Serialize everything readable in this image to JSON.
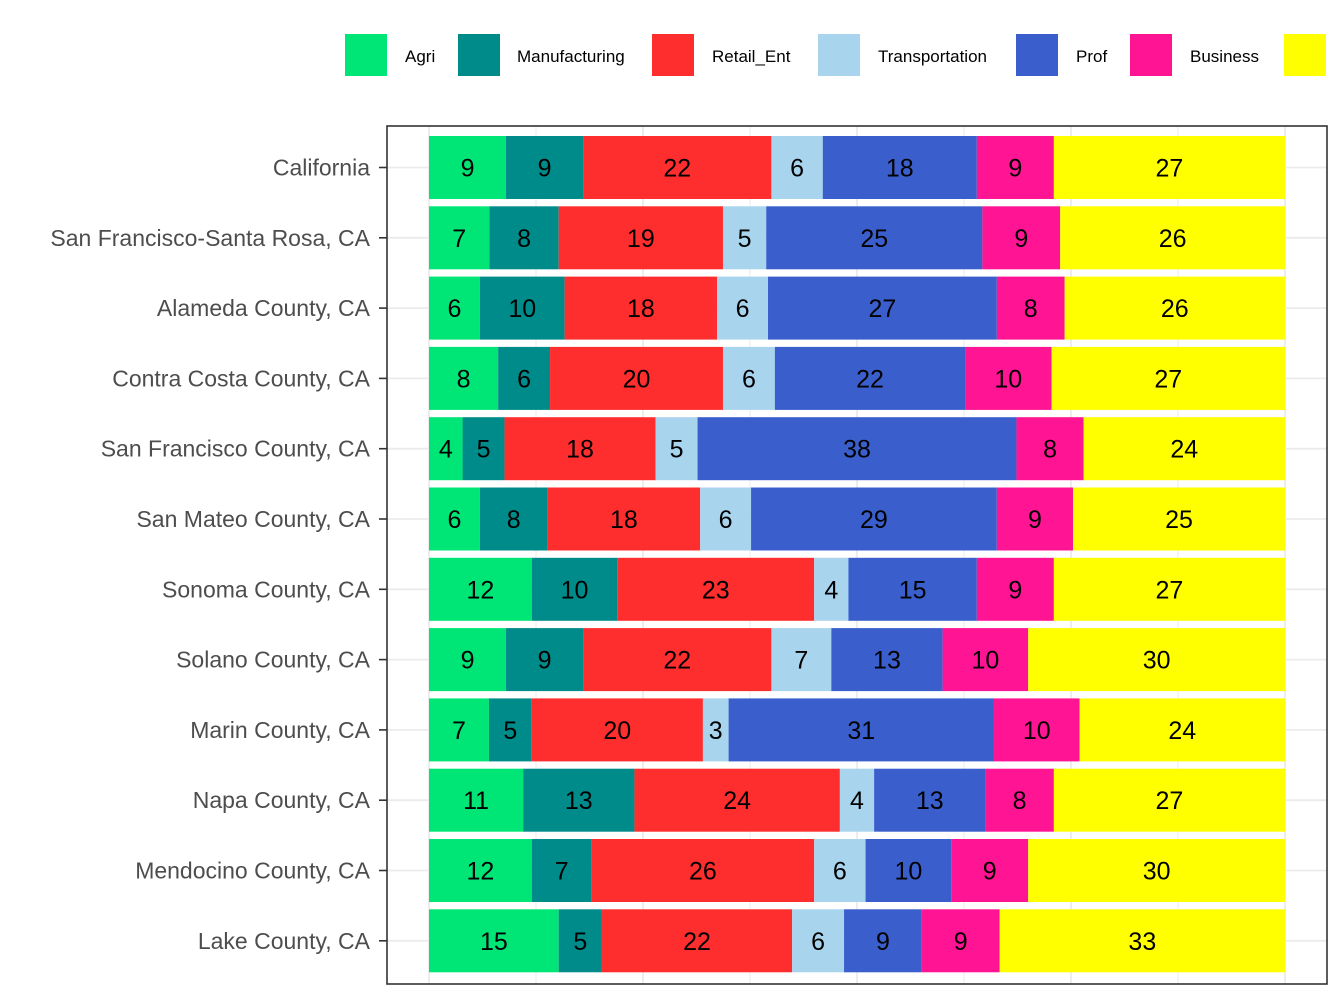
{
  "chart_data": {
    "type": "bar",
    "orientation": "horizontal",
    "stacked": true,
    "title": "",
    "xlabel": "",
    "ylabel": "",
    "grid": true,
    "legend_position": "top",
    "categories": [
      "California",
      "San Francisco-Santa Rosa, CA",
      "Alameda County, CA",
      "Contra Costa County, CA",
      "San Francisco County, CA",
      "San Mateo County, CA",
      "Sonoma County, CA",
      "Solano County, CA",
      "Marin County, CA",
      "Napa County, CA",
      "Mendocino County, CA",
      "Lake County, CA"
    ],
    "series": [
      {
        "name": "Agri",
        "color": "#00e676",
        "values": [
          9,
          7,
          6,
          8,
          4,
          6,
          12,
          9,
          7,
          11,
          12,
          15
        ]
      },
      {
        "name": "Manufacturing",
        "color": "#008b8b",
        "values": [
          9,
          8,
          10,
          6,
          5,
          8,
          10,
          9,
          5,
          13,
          7,
          5
        ]
      },
      {
        "name": "Retail_Ent",
        "color": "#ff2e2e",
        "values": [
          22,
          19,
          18,
          20,
          18,
          18,
          23,
          22,
          20,
          24,
          26,
          22
        ]
      },
      {
        "name": "Transportation",
        "color": "#a8d4ee",
        "values": [
          6,
          5,
          6,
          6,
          5,
          6,
          4,
          7,
          3,
          4,
          6,
          6
        ]
      },
      {
        "name": "Prof",
        "color": "#3a5fcd",
        "values": [
          18,
          25,
          27,
          22,
          38,
          29,
          15,
          13,
          31,
          13,
          10,
          9
        ]
      },
      {
        "name": "Business",
        "color": "#ff1493",
        "values": [
          9,
          9,
          8,
          10,
          8,
          9,
          9,
          10,
          10,
          8,
          9,
          9
        ]
      },
      {
        "name": "",
        "color": "#ffff00",
        "values": [
          27,
          26,
          26,
          27,
          24,
          25,
          27,
          30,
          24,
          27,
          30,
          33
        ]
      }
    ]
  }
}
